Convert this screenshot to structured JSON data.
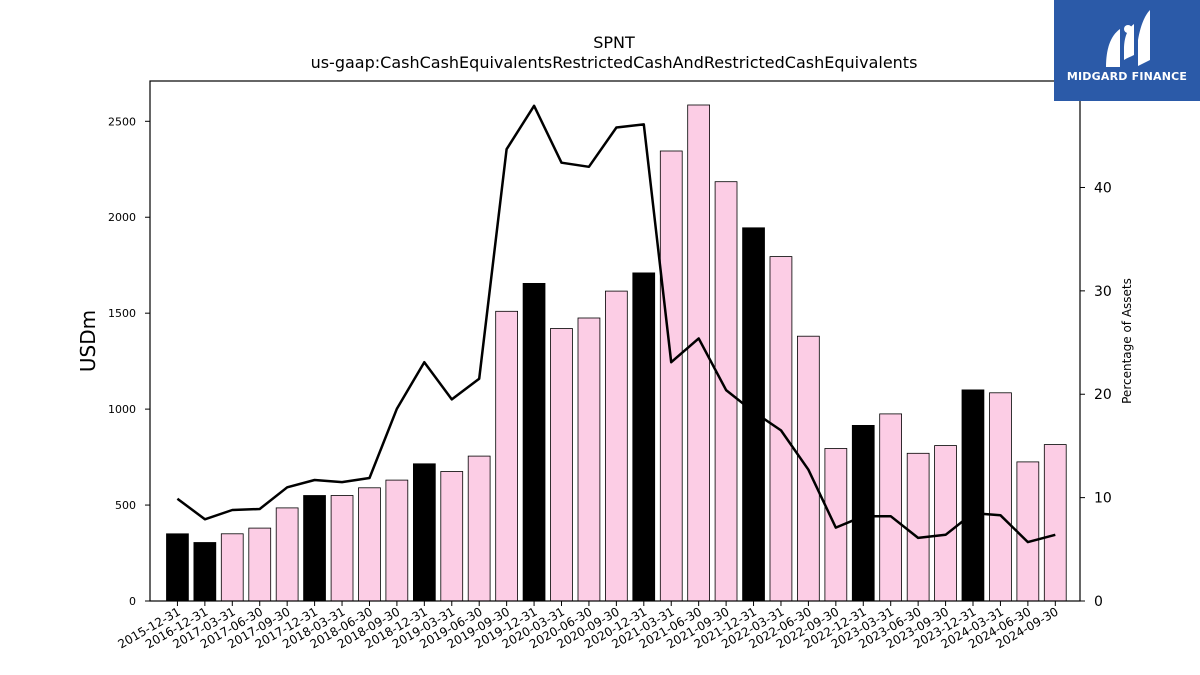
{
  "chart_data": {
    "type": "bar",
    "title": "SPNT",
    "subtitle": "us-gaap:CashCashEquivalentsRestrictedCashAndRestrictedCashEquivalents",
    "ylabel": "USDm",
    "y2label": "Percentage of Assets",
    "ylim": [
      0,
      2500
    ],
    "y2lim": [
      0,
      48
    ],
    "yticks": [
      0,
      500,
      1000,
      1500,
      2000,
      2500
    ],
    "y2ticks": [
      0,
      10,
      20,
      30,
      40
    ],
    "categories": [
      "2015-12-31",
      "2016-12-31",
      "2017-03-31",
      "2017-06-30",
      "2017-09-30",
      "2017-12-31",
      "2018-03-31",
      "2018-06-30",
      "2018-09-30",
      "2018-12-31",
      "2019-03-31",
      "2019-06-30",
      "2019-09-30",
      "2019-12-31",
      "2020-03-31",
      "2020-06-30",
      "2020-09-30",
      "2020-12-31",
      "2021-03-31",
      "2021-06-30",
      "2021-09-30",
      "2021-12-31",
      "2022-03-31",
      "2022-06-30",
      "2022-09-30",
      "2022-12-31",
      "2023-03-31",
      "2023-06-30",
      "2023-09-30",
      "2023-12-31",
      "2024-03-31",
      "2024-06-30",
      "2024-09-30"
    ],
    "series": [
      {
        "type": "bar",
        "values": [
          350,
          305,
          350,
          380,
          485,
          550,
          550,
          590,
          630,
          715,
          675,
          755,
          1510,
          1655,
          1420,
          1475,
          1615,
          1710,
          2345,
          2585,
          2185,
          1945,
          1795,
          1380,
          795,
          915,
          975,
          770,
          810,
          1100,
          1085,
          725,
          815
        ],
        "colors": [
          "#000000",
          "#000000",
          "#fccde5",
          "#fccde5",
          "#fccde5",
          "#000000",
          "#fccde5",
          "#fccde5",
          "#fccde5",
          "#000000",
          "#fccde5",
          "#fccde5",
          "#fccde5",
          "#000000",
          "#fccde5",
          "#fccde5",
          "#fccde5",
          "#000000",
          "#fccde5",
          "#fccde5",
          "#fccde5",
          "#000000",
          "#fccde5",
          "#fccde5",
          "#fccde5",
          "#000000",
          "#fccde5",
          "#fccde5",
          "#fccde5",
          "#000000",
          "#fccde5",
          "#fccde5",
          "#fccde5"
        ]
      },
      {
        "type": "line",
        "axis": "right",
        "color": "#000000",
        "values": [
          9.9,
          7.9,
          8.8,
          8.9,
          11.0,
          11.7,
          11.5,
          11.9,
          18.6,
          23.1,
          19.5,
          21.5,
          43.7,
          47.9,
          42.4,
          42.0,
          45.8,
          46.1,
          23.1,
          25.4,
          20.4,
          18.3,
          16.5,
          12.7,
          7.1,
          8.2,
          8.2,
          6.1,
          6.4,
          8.5,
          8.3,
          5.7,
          6.4
        ]
      }
    ]
  },
  "logo": {
    "text": "MIDGARD FINANCE",
    "color": "#2b5aa8"
  }
}
